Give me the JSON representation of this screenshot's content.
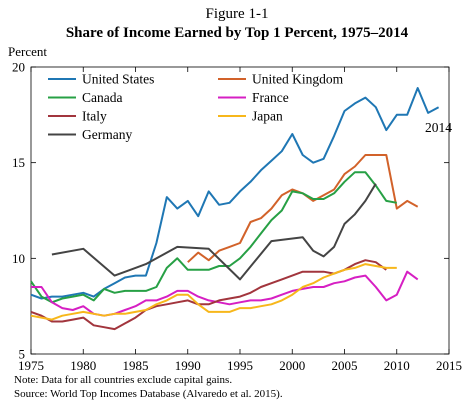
{
  "figure_label": "Figure 1-1",
  "chart_data": {
    "type": "line",
    "title": "Share of Income Earned by Top 1 Percent, 1975–2014",
    "xlabel": "",
    "ylabel": "Percent",
    "xlim": [
      1975,
      2015
    ],
    "ylim": [
      5,
      20
    ],
    "x_ticks": [
      1975,
      1980,
      1985,
      1990,
      1995,
      2000,
      2005,
      2010,
      2015
    ],
    "y_ticks": [
      5,
      10,
      15,
      20
    ],
    "grid": false,
    "legend_position": "top-left (inside)",
    "annotations": [
      {
        "text": "2014",
        "x": 2014,
        "y": 16.8
      }
    ],
    "series": [
      {
        "name": "United States",
        "color": "#1f77b4",
        "points": [
          [
            1975,
            8.1
          ],
          [
            1976,
            7.9
          ],
          [
            1977,
            8.0
          ],
          [
            1978,
            8.0
          ],
          [
            1979,
            8.1
          ],
          [
            1980,
            8.2
          ],
          [
            1981,
            8.0
          ],
          [
            1982,
            8.4
          ],
          [
            1983,
            8.7
          ],
          [
            1984,
            9.0
          ],
          [
            1985,
            9.1
          ],
          [
            1986,
            9.1
          ],
          [
            1987,
            10.8
          ],
          [
            1988,
            13.2
          ],
          [
            1989,
            12.6
          ],
          [
            1990,
            13.0
          ],
          [
            1991,
            12.2
          ],
          [
            1992,
            13.5
          ],
          [
            1993,
            12.8
          ],
          [
            1994,
            12.9
          ],
          [
            1995,
            13.5
          ],
          [
            1996,
            14.0
          ],
          [
            1997,
            14.6
          ],
          [
            1998,
            15.1
          ],
          [
            1999,
            15.6
          ],
          [
            2000,
            16.5
          ],
          [
            2001,
            15.4
          ],
          [
            2002,
            15.0
          ],
          [
            2003,
            15.2
          ],
          [
            2004,
            16.4
          ],
          [
            2005,
            17.7
          ],
          [
            2006,
            18.1
          ],
          [
            2007,
            18.4
          ],
          [
            2008,
            17.9
          ],
          [
            2009,
            16.7
          ],
          [
            2010,
            17.5
          ],
          [
            2011,
            17.5
          ],
          [
            2012,
            18.9
          ],
          [
            2013,
            17.6
          ],
          [
            2014,
            17.9
          ]
        ]
      },
      {
        "name": "United Kingdom",
        "color": "#d2622a",
        "points": [
          [
            1990,
            9.8
          ],
          [
            1991,
            10.3
          ],
          [
            1992,
            9.9
          ],
          [
            1993,
            10.4
          ],
          [
            1994,
            10.6
          ],
          [
            1995,
            10.8
          ],
          [
            1996,
            11.9
          ],
          [
            1997,
            12.1
          ],
          [
            1998,
            12.6
          ],
          [
            1999,
            13.3
          ],
          [
            2000,
            13.6
          ],
          [
            2001,
            13.4
          ],
          [
            2002,
            13.0
          ],
          [
            2003,
            13.3
          ],
          [
            2004,
            13.6
          ],
          [
            2005,
            14.4
          ],
          [
            2006,
            14.8
          ],
          [
            2007,
            15.4
          ],
          [
            2008,
            15.4
          ],
          [
            2009,
            15.4
          ],
          [
            2010,
            12.6
          ],
          [
            2011,
            13.0
          ],
          [
            2012,
            12.7
          ]
        ]
      },
      {
        "name": "Canada",
        "color": "#27a045",
        "points": [
          [
            1975,
            8.8
          ],
          [
            1976,
            8.0
          ],
          [
            1977,
            7.7
          ],
          [
            1978,
            7.9
          ],
          [
            1979,
            8.0
          ],
          [
            1980,
            8.1
          ],
          [
            1981,
            7.8
          ],
          [
            1982,
            8.4
          ],
          [
            1983,
            8.2
          ],
          [
            1984,
            8.3
          ],
          [
            1985,
            8.3
          ],
          [
            1986,
            8.3
          ],
          [
            1987,
            8.5
          ],
          [
            1988,
            9.5
          ],
          [
            1989,
            10.0
          ],
          [
            1990,
            9.4
          ],
          [
            1991,
            9.4
          ],
          [
            1992,
            9.4
          ],
          [
            1993,
            9.6
          ],
          [
            1994,
            9.6
          ],
          [
            1995,
            10.0
          ],
          [
            1996,
            10.6
          ],
          [
            1997,
            11.3
          ],
          [
            1998,
            12.0
          ],
          [
            1999,
            12.5
          ],
          [
            2000,
            13.5
          ],
          [
            2001,
            13.4
          ],
          [
            2002,
            13.1
          ],
          [
            2003,
            13.1
          ],
          [
            2004,
            13.4
          ],
          [
            2005,
            14.0
          ],
          [
            2006,
            14.5
          ],
          [
            2007,
            14.5
          ],
          [
            2008,
            13.8
          ],
          [
            2009,
            13.0
          ],
          [
            2010,
            12.9
          ]
        ]
      },
      {
        "name": "France",
        "color": "#d61fc3",
        "points": [
          [
            1975,
            8.5
          ],
          [
            1976,
            8.5
          ],
          [
            1977,
            7.7
          ],
          [
            1978,
            7.4
          ],
          [
            1979,
            7.3
          ],
          [
            1980,
            7.5
          ],
          [
            1981,
            7.1
          ],
          [
            1982,
            7.0
          ],
          [
            1983,
            7.1
          ],
          [
            1984,
            7.3
          ],
          [
            1985,
            7.5
          ],
          [
            1986,
            7.8
          ],
          [
            1987,
            7.8
          ],
          [
            1988,
            8.0
          ],
          [
            1989,
            8.3
          ],
          [
            1990,
            8.3
          ],
          [
            1991,
            8.0
          ],
          [
            1992,
            7.8
          ],
          [
            1993,
            7.7
          ],
          [
            1994,
            7.6
          ],
          [
            1995,
            7.7
          ],
          [
            1996,
            7.8
          ],
          [
            1997,
            7.8
          ],
          [
            1998,
            7.9
          ],
          [
            1999,
            8.1
          ],
          [
            2000,
            8.3
          ],
          [
            2001,
            8.4
          ],
          [
            2002,
            8.5
          ],
          [
            2003,
            8.5
          ],
          [
            2004,
            8.7
          ],
          [
            2005,
            8.8
          ],
          [
            2006,
            9.0
          ],
          [
            2007,
            9.1
          ],
          [
            2008,
            8.5
          ],
          [
            2009,
            7.8
          ],
          [
            2010,
            8.1
          ],
          [
            2011,
            9.3
          ],
          [
            2012,
            8.9
          ]
        ]
      },
      {
        "name": "Italy",
        "color": "#a2353d",
        "points": [
          [
            1975,
            7.2
          ],
          [
            1976,
            7.0
          ],
          [
            1977,
            6.7
          ],
          [
            1978,
            6.7
          ],
          [
            1979,
            6.8
          ],
          [
            1980,
            6.9
          ],
          [
            1981,
            6.5
          ],
          [
            1982,
            6.4
          ],
          [
            1983,
            6.3
          ],
          [
            1984,
            6.6
          ],
          [
            1985,
            6.9
          ],
          [
            1986,
            7.3
          ],
          [
            1987,
            7.5
          ],
          [
            1988,
            7.6
          ],
          [
            1989,
            7.7
          ],
          [
            1990,
            7.8
          ],
          [
            1991,
            7.6
          ],
          [
            1992,
            7.6
          ],
          [
            1993,
            7.8
          ],
          [
            1994,
            7.9
          ],
          [
            1995,
            8.0
          ],
          [
            1996,
            8.2
          ],
          [
            1997,
            8.5
          ],
          [
            1998,
            8.7
          ],
          [
            1999,
            8.9
          ],
          [
            2000,
            9.1
          ],
          [
            2001,
            9.3
          ],
          [
            2002,
            9.3
          ],
          [
            2003,
            9.3
          ],
          [
            2004,
            9.2
          ],
          [
            2005,
            9.4
          ],
          [
            2006,
            9.7
          ],
          [
            2007,
            9.9
          ],
          [
            2008,
            9.8
          ],
          [
            2009,
            9.4
          ]
        ]
      },
      {
        "name": "Japan",
        "color": "#f7b71b",
        "points": [
          [
            1975,
            7.0
          ],
          [
            1976,
            6.9
          ],
          [
            1977,
            6.8
          ],
          [
            1978,
            7.0
          ],
          [
            1979,
            7.1
          ],
          [
            1980,
            7.2
          ],
          [
            1981,
            7.1
          ],
          [
            1982,
            7.0
          ],
          [
            1983,
            7.1
          ],
          [
            1984,
            7.1
          ],
          [
            1985,
            7.2
          ],
          [
            1986,
            7.3
          ],
          [
            1987,
            7.6
          ],
          [
            1988,
            7.8
          ],
          [
            1989,
            8.1
          ],
          [
            1990,
            8.1
          ],
          [
            1991,
            7.6
          ],
          [
            1992,
            7.2
          ],
          [
            1993,
            7.2
          ],
          [
            1994,
            7.2
          ],
          [
            1995,
            7.4
          ],
          [
            1996,
            7.4
          ],
          [
            1997,
            7.5
          ],
          [
            1998,
            7.6
          ],
          [
            1999,
            7.8
          ],
          [
            2000,
            8.1
          ],
          [
            2001,
            8.5
          ],
          [
            2002,
            8.7
          ],
          [
            2003,
            9.0
          ],
          [
            2004,
            9.2
          ],
          [
            2005,
            9.4
          ],
          [
            2006,
            9.5
          ],
          [
            2007,
            9.7
          ],
          [
            2008,
            9.6
          ],
          [
            2009,
            9.5
          ],
          [
            2010,
            9.5
          ]
        ]
      },
      {
        "name": "Germany",
        "color": "#444444",
        "points": [
          [
            1977,
            10.2
          ],
          [
            1980,
            10.5
          ],
          [
            1983,
            9.1
          ],
          [
            1986,
            9.7
          ],
          [
            1989,
            10.6
          ],
          [
            1992,
            10.5
          ],
          [
            1995,
            8.9
          ],
          [
            1998,
            10.9
          ],
          [
            2001,
            11.1
          ],
          [
            2002,
            10.4
          ],
          [
            2003,
            10.1
          ],
          [
            2004,
            10.6
          ],
          [
            2005,
            11.8
          ],
          [
            2006,
            12.3
          ],
          [
            2007,
            13.0
          ],
          [
            2008,
            13.9
          ]
        ]
      }
    ]
  },
  "note_lines": [
    "Note: Data for all countries exclude capital gains.",
    "Source: World Top Incomes Database (Alvaredo et al. 2015)."
  ]
}
